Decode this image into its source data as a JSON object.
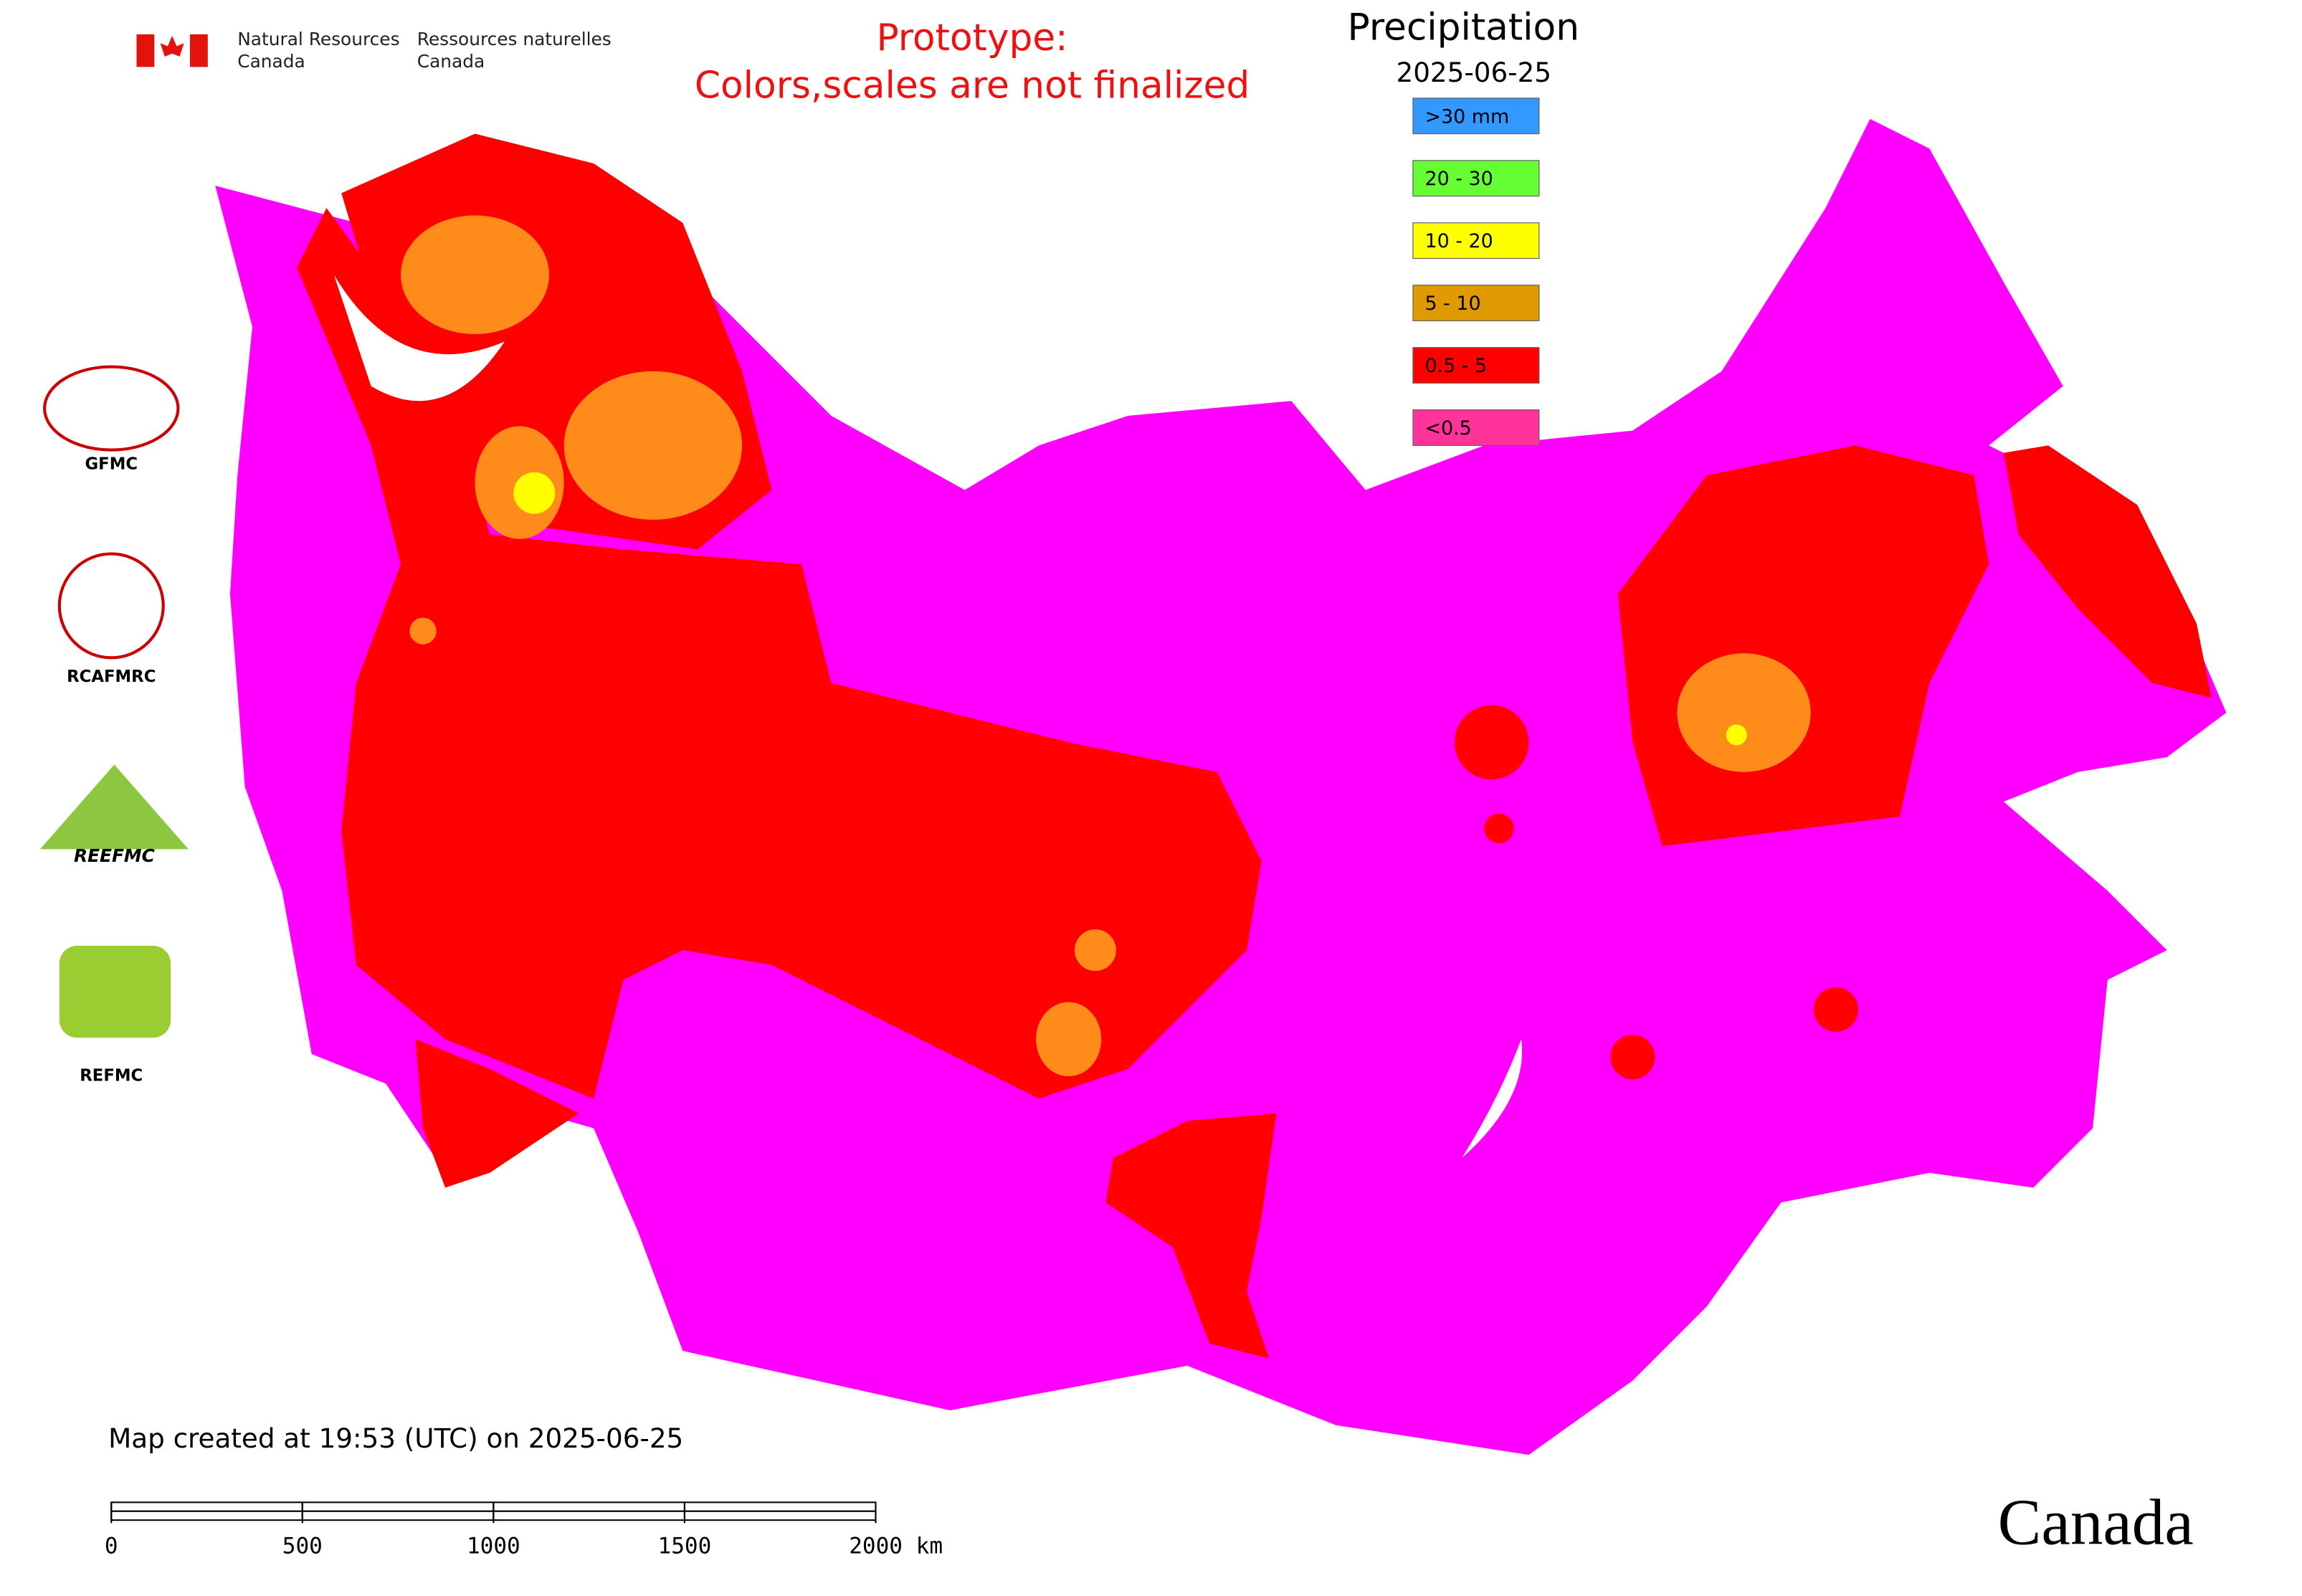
{
  "header": {
    "agency_en": "Natural Resources",
    "agency_en_2": "Canada",
    "agency_fr": "Ressources naturelles",
    "agency_fr_2": "Canada"
  },
  "notice": {
    "line1": "Prototype:",
    "line2": "Colors,scales are not finalized"
  },
  "legend": {
    "title": "Precipitation",
    "date": "2025-06-25",
    "items": [
      {
        "label": ">30 mm",
        "color": "#3399ff"
      },
      {
        "label": "20 - 30",
        "color": "#66ff33"
      },
      {
        "label": "10 - 20",
        "color": "#ffff00"
      },
      {
        "label": "5 - 10",
        "color": "#e09a00"
      },
      {
        "label": "0.5 - 5",
        "color": "#ff0000"
      },
      {
        "label": "<0.5",
        "color": "#ff3399"
      }
    ]
  },
  "logos": {
    "gfmc": "GFMC",
    "rcafmrc": "RCAFMRC",
    "reefmc": "REEFMC",
    "refmc": "REFMC"
  },
  "footer": {
    "created": "Map created at 19:53 (UTC) on 2025-06-25",
    "wordmark": "Canada"
  },
  "scale_bar": {
    "range": [
      0,
      2000
    ],
    "ticks": [
      0,
      500,
      1000,
      1500,
      {
        "value": 2000,
        "label": "2000 km"
      }
    ]
  }
}
